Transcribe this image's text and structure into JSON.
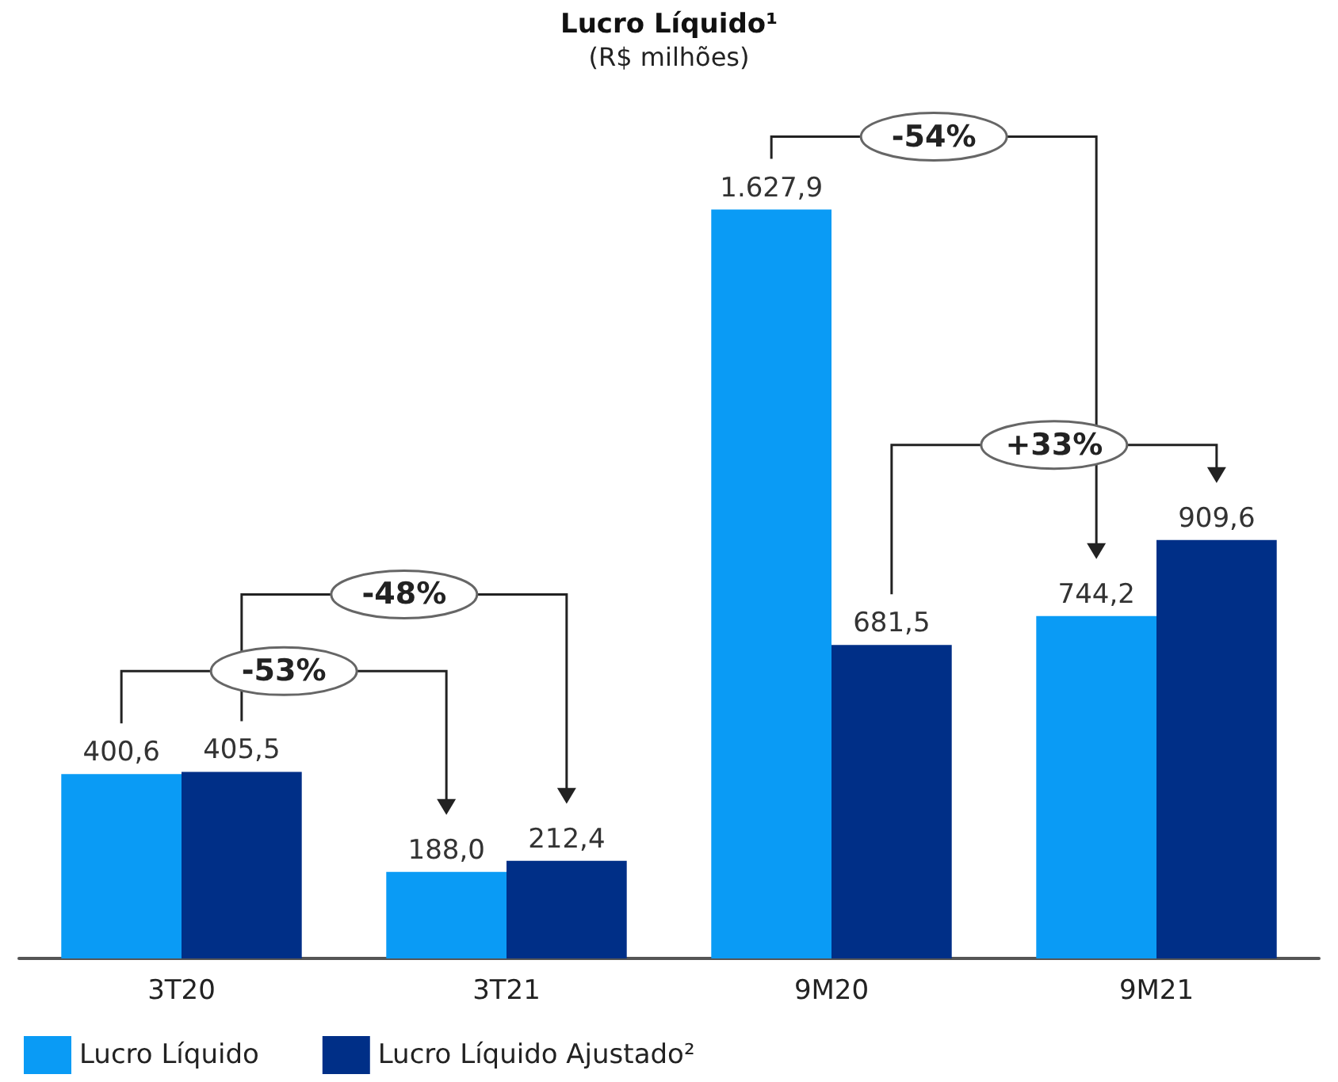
{
  "chart_data": {
    "type": "bar",
    "title": "Lucro Líquido¹",
    "subtitle": "(R$ milhões)",
    "categories": [
      "3T20",
      "3T21",
      "9M20",
      "9M21"
    ],
    "series": [
      {
        "name": "Lucro Líquido",
        "color": "#0a9bf5",
        "values": [
          400.6,
          188.0,
          1627.9,
          744.2
        ],
        "value_labels": [
          "400,6",
          "188,0",
          "1.627,9",
          "744,2"
        ]
      },
      {
        "name": "Lucro Líquido Ajustado²",
        "color": "#002f87",
        "values": [
          405.5,
          212.4,
          681.5,
          909.6
        ],
        "value_labels": [
          "405,5",
          "212,4",
          "681,5",
          "909,6"
        ]
      }
    ],
    "annotations": [
      "-54%",
      "+33%",
      "-48%",
      "-53%"
    ],
    "legend": "bottom left"
  }
}
